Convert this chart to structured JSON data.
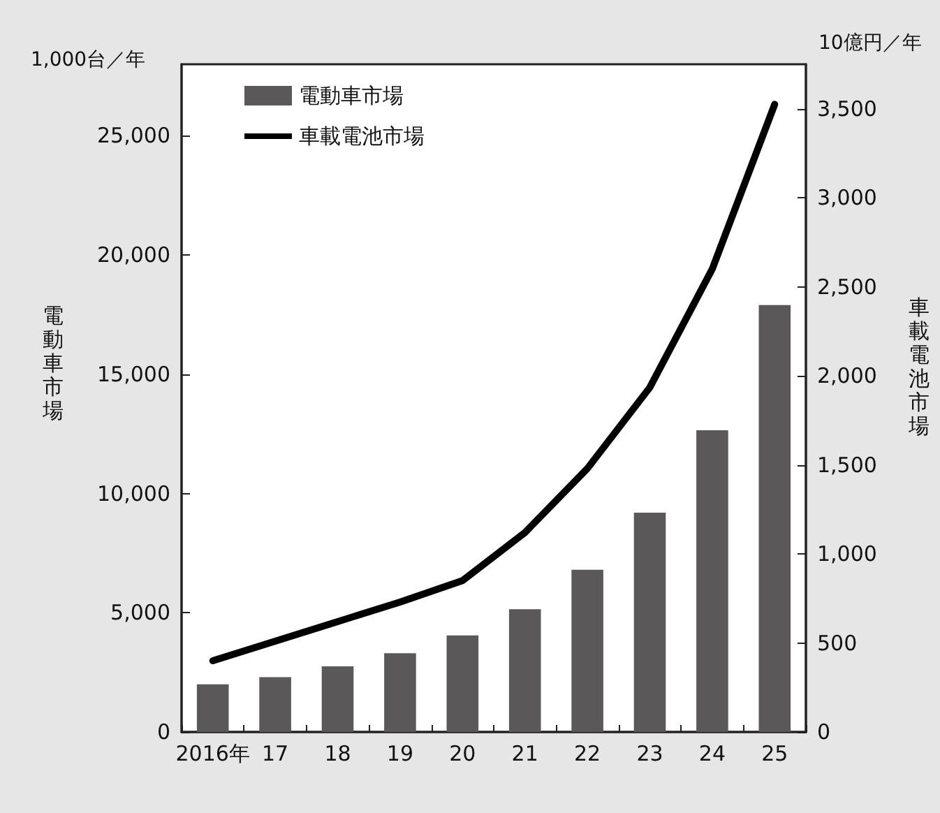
{
  "chart_data": {
    "type": "bar",
    "ylabel": "電動車市場",
    "y2label": "車載電池市場",
    "annotations": [
      "1,000台／年",
      "10億円／年"
    ],
    "categories": [
      "2016年",
      "17",
      "18",
      "19",
      "20",
      "21",
      "22",
      "23",
      "24",
      "25"
    ],
    "series": [
      {
        "name": "電動車市場",
        "color": "#5a5859",
        "values": [
          2000,
          2300,
          2750,
          3300,
          4050,
          5150,
          6800,
          9200,
          12650,
          17900
        ]
      },
      {
        "name": "車載電池市場",
        "type": "line",
        "axis": "y2",
        "color": "#000000",
        "values": [
          400,
          510,
          620,
          730,
          850,
          1120,
          1480,
          1935,
          2600,
          3525
        ]
      }
    ],
    "ylim": [
      0,
      28000
    ],
    "yticks": [
      0,
      {
        "value": 5000,
        "label": "5,000"
      },
      {
        "value": 10000,
        "label": "10,000"
      },
      {
        "value": 15000,
        "label": "15,000"
      },
      {
        "value": 20000,
        "label": "20,000"
      },
      {
        "value": 25000,
        "label": "25,000"
      }
    ],
    "y2lim": [
      0,
      3750
    ],
    "y2ticks": [
      0,
      500,
      {
        "value": 1000,
        "label": "1,000"
      },
      {
        "value": 1500,
        "label": "1,500"
      },
      {
        "value": 2000,
        "label": "2,000"
      },
      {
        "value": 2500,
        "label": "2,500"
      },
      {
        "value": 3000,
        "label": "3,000"
      },
      {
        "value": 3500,
        "label": "3,500"
      }
    ],
    "grid": false,
    "legend": "top left",
    "marker": "none"
  }
}
